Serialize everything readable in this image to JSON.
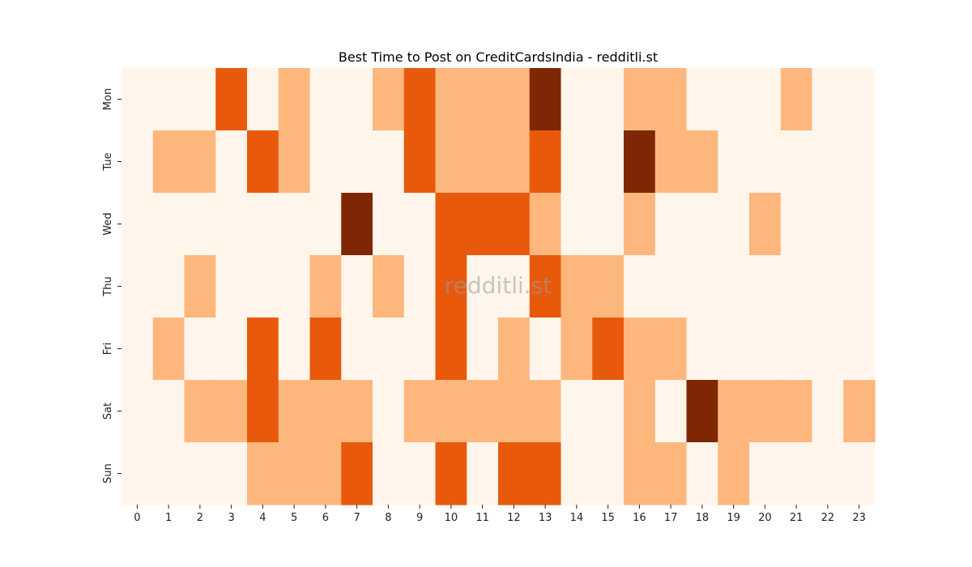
{
  "chart_data": {
    "type": "heatmap",
    "title": "Best Time to Post on CreditCardsIndia - redditli.st",
    "watermark": "redditli.st",
    "x_labels": [
      "0",
      "1",
      "2",
      "3",
      "4",
      "5",
      "6",
      "7",
      "8",
      "9",
      "10",
      "11",
      "12",
      "13",
      "14",
      "15",
      "16",
      "17",
      "18",
      "19",
      "20",
      "21",
      "22",
      "23"
    ],
    "y_labels": [
      "Mon",
      "Tue",
      "Wed",
      "Thu",
      "Fri",
      "Sat",
      "Sun"
    ],
    "xlabel": "",
    "ylabel": "",
    "color_scale": [
      "#fff5eb",
      "#fdb77d",
      "#e8590c",
      "#7f2704"
    ],
    "values": [
      [
        0,
        0,
        0,
        2,
        0,
        1,
        0,
        0,
        1,
        2,
        1,
        1,
        1,
        3,
        0,
        0,
        1,
        1,
        0,
        0,
        0,
        1,
        0,
        0
      ],
      [
        0,
        1,
        1,
        0,
        2,
        1,
        0,
        0,
        0,
        2,
        1,
        1,
        1,
        2,
        0,
        0,
        3,
        1,
        1,
        0,
        0,
        0,
        0,
        0
      ],
      [
        0,
        0,
        0,
        0,
        0,
        0,
        0,
        3,
        0,
        0,
        2,
        2,
        2,
        1,
        0,
        0,
        1,
        0,
        0,
        0,
        1,
        0,
        0,
        0
      ],
      [
        0,
        0,
        1,
        0,
        0,
        0,
        1,
        0,
        1,
        0,
        2,
        0,
        0,
        2,
        1,
        1,
        0,
        0,
        0,
        0,
        0,
        0,
        0,
        0
      ],
      [
        0,
        1,
        0,
        0,
        2,
        0,
        2,
        0,
        0,
        0,
        2,
        0,
        1,
        0,
        1,
        2,
        1,
        1,
        0,
        0,
        0,
        0,
        0,
        0
      ],
      [
        0,
        0,
        1,
        1,
        2,
        1,
        1,
        1,
        0,
        1,
        1,
        1,
        1,
        1,
        0,
        0,
        1,
        0,
        3,
        1,
        1,
        1,
        0,
        1
      ],
      [
        0,
        0,
        0,
        0,
        1,
        1,
        1,
        2,
        0,
        0,
        2,
        0,
        2,
        2,
        0,
        0,
        1,
        1,
        0,
        1,
        0,
        0,
        0,
        0
      ]
    ]
  }
}
